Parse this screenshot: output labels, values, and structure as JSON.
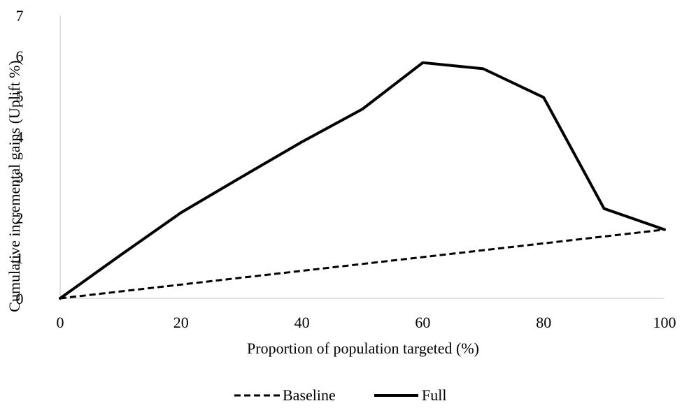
{
  "chart_data": {
    "type": "line",
    "title": "",
    "xlabel": "Proportion of population targeted (%)",
    "ylabel": "Cumulative incremental gains (Uplift %)",
    "xlim": [
      0,
      100
    ],
    "ylim": [
      0,
      7
    ],
    "x_ticks": [
      "0",
      "20",
      "40",
      "60",
      "80",
      "100"
    ],
    "y_ticks": [
      "0",
      "1",
      "2",
      "3",
      "4",
      "5",
      "6",
      "7"
    ],
    "grid": false,
    "legend_position": "bottom",
    "x": [
      0,
      10,
      20,
      30,
      40,
      50,
      60,
      70,
      80,
      90,
      100
    ],
    "series": [
      {
        "name": "Baseline",
        "style": "dashed",
        "color": "#000000",
        "values": [
          0,
          0.17,
          0.34,
          0.51,
          0.68,
          0.85,
          1.02,
          1.19,
          1.36,
          1.53,
          1.7
        ]
      },
      {
        "name": "Full",
        "style": "solid",
        "color": "#000000",
        "values": [
          0,
          1.07,
          2.12,
          3.0,
          3.87,
          4.68,
          5.83,
          5.68,
          4.97,
          2.22,
          1.7
        ]
      }
    ]
  }
}
